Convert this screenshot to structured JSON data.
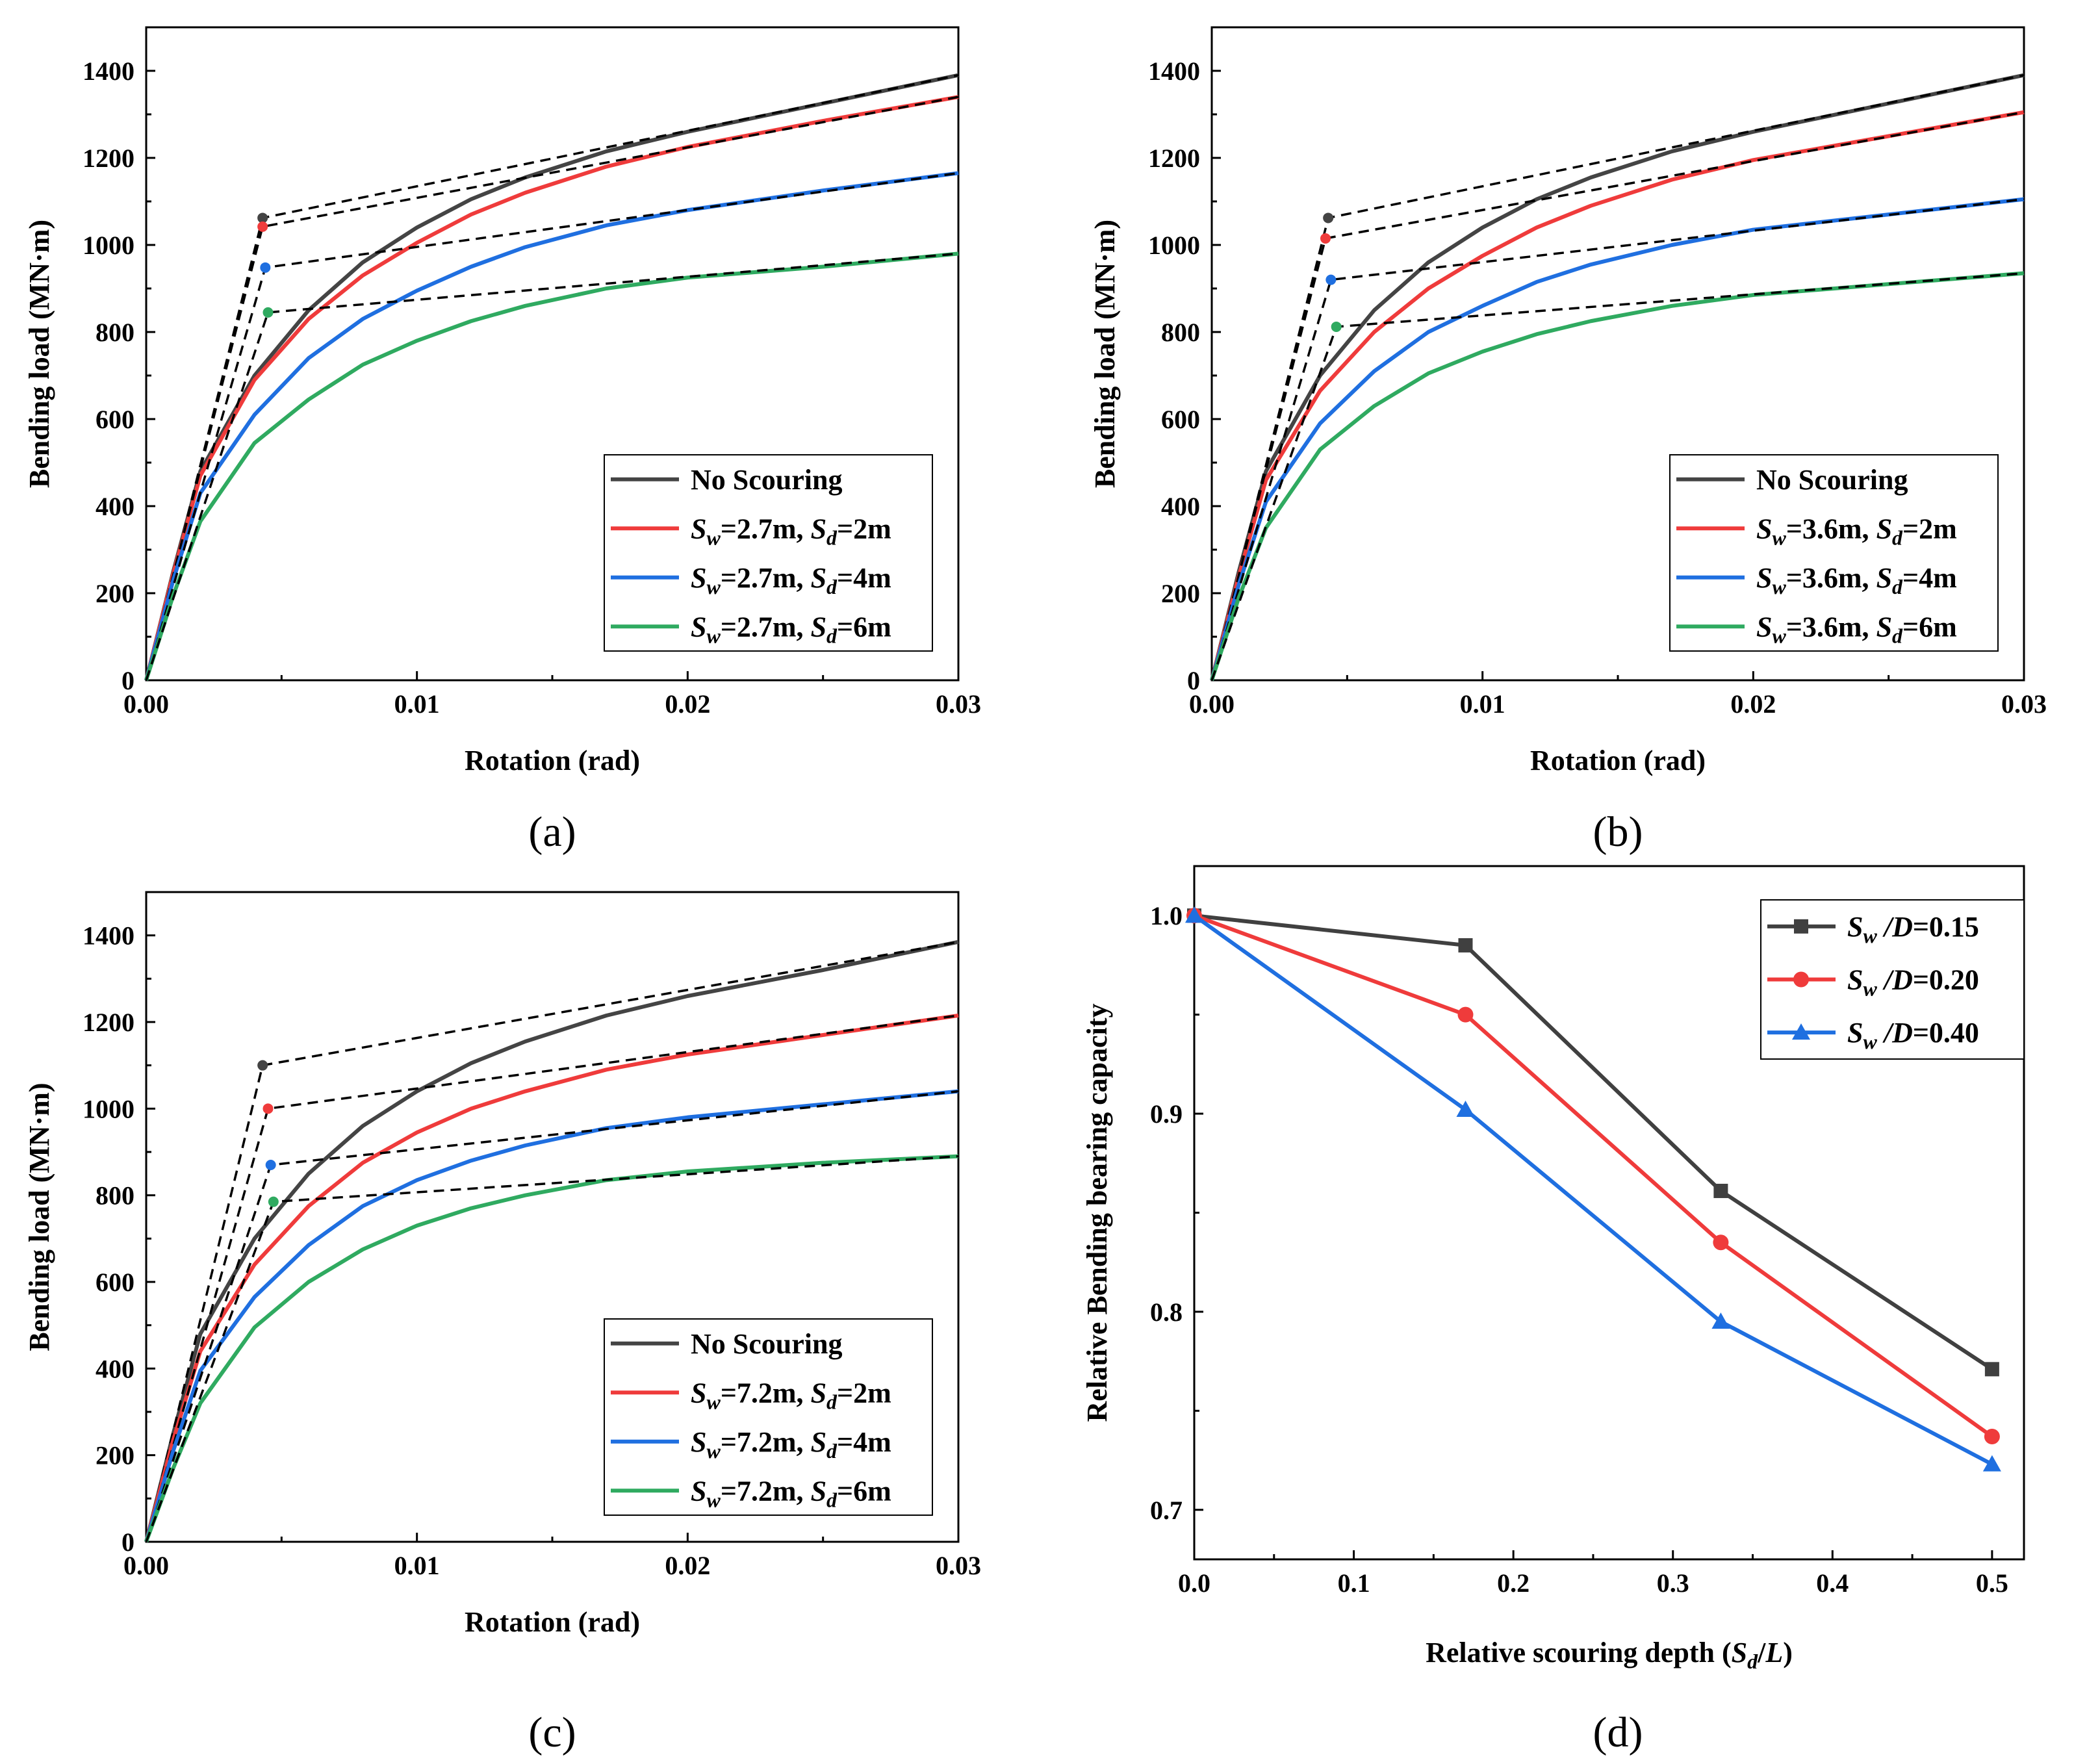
{
  "colors": {
    "no_scouring": "#444444",
    "sd_2m": "#ef3b3b",
    "sd_4m": "#1f6fe0",
    "sd_6m": "#2faa60",
    "bilinear": "#000000",
    "d_015": "#404040",
    "d_020": "#ef3b3b",
    "d_040": "#1f6fe0"
  },
  "chart_data": [
    {
      "type": "line",
      "panel_label": "(a)",
      "xlabel": "Rotation (rad)",
      "ylabel": "Bending load (MN·m)",
      "xlim": [
        0,
        0.03
      ],
      "ylim": [
        0,
        1500
      ],
      "x_tick_labels": [
        "0.00",
        "0.01",
        "0.02",
        "0.03"
      ],
      "y_tick_labels": [
        "0",
        "200",
        "400",
        "600",
        "800",
        "1000",
        "1200",
        "1400"
      ],
      "legend": [
        {
          "parts": [
            {
              "t": "No Scouring"
            }
          ]
        },
        {
          "parts": [
            {
              "t": "S",
              "i": true
            },
            {
              "t": "w",
              "i": true,
              "sub": true
            },
            {
              "t": "=2.7m, "
            },
            {
              "t": "S",
              "i": true
            },
            {
              "t": "d",
              "i": true,
              "sub": true
            },
            {
              "t": "=2m"
            }
          ]
        },
        {
          "parts": [
            {
              "t": "S",
              "i": true
            },
            {
              "t": "w",
              "i": true,
              "sub": true
            },
            {
              "t": "=2.7m, "
            },
            {
              "t": "S",
              "i": true
            },
            {
              "t": "d",
              "i": true,
              "sub": true
            },
            {
              "t": "=4m"
            }
          ]
        },
        {
          "parts": [
            {
              "t": "S",
              "i": true
            },
            {
              "t": "w",
              "i": true,
              "sub": true
            },
            {
              "t": "=2.7m, "
            },
            {
              "t": "S",
              "i": true
            },
            {
              "t": "d",
              "i": true,
              "sub": true
            },
            {
              "t": "=6m"
            }
          ]
        }
      ],
      "series": [
        {
          "name": "No Scouring",
          "x": [
            0,
            0.001,
            0.002,
            0.004,
            0.006,
            0.008,
            0.01,
            0.012,
            0.014,
            0.017,
            0.02,
            0.025,
            0.03
          ],
          "y": [
            0,
            250,
            480,
            700,
            850,
            960,
            1040,
            1105,
            1155,
            1215,
            1260,
            1325,
            1390
          ],
          "yield": [
            0.0043,
            1062
          ]
        },
        {
          "name": "Sw=2.7m, Sd=2m",
          "x": [
            0,
            0.001,
            0.002,
            0.004,
            0.006,
            0.008,
            0.01,
            0.012,
            0.014,
            0.017,
            0.02,
            0.025,
            0.03
          ],
          "y": [
            0,
            245,
            470,
            690,
            830,
            930,
            1005,
            1070,
            1120,
            1180,
            1225,
            1285,
            1340
          ],
          "yield": [
            0.0043,
            1042
          ]
        },
        {
          "name": "Sw=2.7m, Sd=4m",
          "x": [
            0,
            0.001,
            0.002,
            0.004,
            0.006,
            0.008,
            0.01,
            0.012,
            0.014,
            0.017,
            0.02,
            0.025,
            0.03
          ],
          "y": [
            0,
            230,
            430,
            610,
            740,
            830,
            895,
            950,
            995,
            1045,
            1080,
            1125,
            1165
          ],
          "yield": [
            0.0044,
            948
          ]
        },
        {
          "name": "Sw=2.7m, Sd=6m",
          "x": [
            0,
            0.001,
            0.002,
            0.004,
            0.006,
            0.008,
            0.01,
            0.012,
            0.014,
            0.017,
            0.02,
            0.025,
            0.03
          ],
          "y": [
            0,
            195,
            365,
            545,
            645,
            725,
            780,
            825,
            860,
            900,
            925,
            950,
            980
          ],
          "yield": [
            0.0045,
            845
          ]
        }
      ]
    },
    {
      "type": "line",
      "panel_label": "(b)",
      "xlabel": "Rotation (rad)",
      "ylabel": "Bending load (MN·m)",
      "xlim": [
        0,
        0.03
      ],
      "ylim": [
        0,
        1500
      ],
      "x_tick_labels": [
        "0.00",
        "0.01",
        "0.02",
        "0.03"
      ],
      "y_tick_labels": [
        "0",
        "200",
        "400",
        "600",
        "800",
        "1000",
        "1200",
        "1400"
      ],
      "legend": [
        {
          "parts": [
            {
              "t": "No Scouring"
            }
          ]
        },
        {
          "parts": [
            {
              "t": "S",
              "i": true
            },
            {
              "t": "w",
              "i": true,
              "sub": true
            },
            {
              "t": "=3.6m, "
            },
            {
              "t": "S",
              "i": true
            },
            {
              "t": "d",
              "i": true,
              "sub": true
            },
            {
              "t": "=2m"
            }
          ]
        },
        {
          "parts": [
            {
              "t": "S",
              "i": true
            },
            {
              "t": "w",
              "i": true,
              "sub": true
            },
            {
              "t": "=3.6m, "
            },
            {
              "t": "S",
              "i": true
            },
            {
              "t": "d",
              "i": true,
              "sub": true
            },
            {
              "t": "=4m"
            }
          ]
        },
        {
          "parts": [
            {
              "t": "S",
              "i": true
            },
            {
              "t": "w",
              "i": true,
              "sub": true
            },
            {
              "t": "=3.6m, "
            },
            {
              "t": "S",
              "i": true
            },
            {
              "t": "d",
              "i": true,
              "sub": true
            },
            {
              "t": "=6m"
            }
          ]
        }
      ],
      "series": [
        {
          "name": "No Scouring",
          "x": [
            0,
            0.001,
            0.002,
            0.004,
            0.006,
            0.008,
            0.01,
            0.012,
            0.014,
            0.017,
            0.02,
            0.025,
            0.03
          ],
          "y": [
            0,
            250,
            480,
            700,
            850,
            960,
            1040,
            1105,
            1155,
            1215,
            1260,
            1325,
            1390
          ],
          "yield": [
            0.0043,
            1062
          ]
        },
        {
          "name": "Sw=3.6m, Sd=2m",
          "x": [
            0,
            0.001,
            0.002,
            0.004,
            0.006,
            0.008,
            0.01,
            0.012,
            0.014,
            0.017,
            0.02,
            0.025,
            0.03
          ],
          "y": [
            0,
            240,
            460,
            665,
            800,
            900,
            975,
            1040,
            1090,
            1150,
            1195,
            1250,
            1305
          ],
          "yield": [
            0.0042,
            1015
          ]
        },
        {
          "name": "Sw=3.6m, Sd=4m",
          "x": [
            0,
            0.001,
            0.002,
            0.004,
            0.006,
            0.008,
            0.01,
            0.012,
            0.014,
            0.017,
            0.02,
            0.025,
            0.03
          ],
          "y": [
            0,
            220,
            410,
            590,
            710,
            800,
            860,
            915,
            955,
            1000,
            1035,
            1070,
            1105
          ],
          "yield": [
            0.0044,
            920
          ]
        },
        {
          "name": "Sw=3.6m, Sd=6m",
          "x": [
            0,
            0.001,
            0.002,
            0.004,
            0.006,
            0.008,
            0.01,
            0.012,
            0.014,
            0.017,
            0.02,
            0.025,
            0.03
          ],
          "y": [
            0,
            190,
            350,
            530,
            630,
            705,
            755,
            795,
            825,
            860,
            885,
            910,
            935
          ],
          "yield": [
            0.0046,
            812
          ]
        }
      ]
    },
    {
      "type": "line",
      "panel_label": "(c)",
      "xlabel": "Rotation (rad)",
      "ylabel": "Bending load (MN·m)",
      "xlim": [
        0,
        0.03
      ],
      "ylim": [
        0,
        1500
      ],
      "x_tick_labels": [
        "0.00",
        "0.01",
        "0.02",
        "0.03"
      ],
      "y_tick_labels": [
        "0",
        "200",
        "400",
        "600",
        "800",
        "1000",
        "1200",
        "1400"
      ],
      "legend": [
        {
          "parts": [
            {
              "t": "No Scouring"
            }
          ]
        },
        {
          "parts": [
            {
              "t": "S",
              "i": true
            },
            {
              "t": "w",
              "i": true,
              "sub": true
            },
            {
              "t": "=7.2m, "
            },
            {
              "t": "S",
              "i": true
            },
            {
              "t": "d",
              "i": true,
              "sub": true
            },
            {
              "t": "=2m"
            }
          ]
        },
        {
          "parts": [
            {
              "t": "S",
              "i": true
            },
            {
              "t": "w",
              "i": true,
              "sub": true
            },
            {
              "t": "=7.2m, "
            },
            {
              "t": "S",
              "i": true
            },
            {
              "t": "d",
              "i": true,
              "sub": true
            },
            {
              "t": "=4m"
            }
          ]
        },
        {
          "parts": [
            {
              "t": "S",
              "i": true
            },
            {
              "t": "w",
              "i": true,
              "sub": true
            },
            {
              "t": "=7.2m, "
            },
            {
              "t": "S",
              "i": true
            },
            {
              "t": "d",
              "i": true,
              "sub": true
            },
            {
              "t": "=6m"
            }
          ]
        }
      ],
      "series": [
        {
          "name": "No Scouring",
          "x": [
            0,
            0.001,
            0.002,
            0.004,
            0.006,
            0.008,
            0.01,
            0.012,
            0.014,
            0.017,
            0.02,
            0.025,
            0.03
          ],
          "y": [
            0,
            250,
            480,
            700,
            850,
            960,
            1040,
            1105,
            1155,
            1215,
            1260,
            1320,
            1385
          ],
          "yield": [
            0.0043,
            1100
          ]
        },
        {
          "name": "Sw=7.2m, Sd=2m",
          "x": [
            0,
            0.001,
            0.002,
            0.004,
            0.006,
            0.008,
            0.01,
            0.012,
            0.014,
            0.017,
            0.02,
            0.025,
            0.03
          ],
          "y": [
            0,
            235,
            440,
            640,
            775,
            875,
            945,
            1000,
            1040,
            1090,
            1125,
            1170,
            1215
          ],
          "yield": [
            0.0045,
            1000
          ]
        },
        {
          "name": "Sw=7.2m, Sd=4m",
          "x": [
            0,
            0.001,
            0.002,
            0.004,
            0.006,
            0.008,
            0.01,
            0.012,
            0.014,
            0.017,
            0.02,
            0.025,
            0.03
          ],
          "y": [
            0,
            210,
            395,
            565,
            685,
            775,
            835,
            880,
            915,
            955,
            980,
            1010,
            1040
          ],
          "yield": [
            0.0046,
            870
          ]
        },
        {
          "name": "Sw=7.2m, Sd=6m",
          "x": [
            0,
            0.001,
            0.002,
            0.004,
            0.006,
            0.008,
            0.01,
            0.012,
            0.014,
            0.017,
            0.02,
            0.025,
            0.03
          ],
          "y": [
            0,
            170,
            320,
            495,
            600,
            675,
            730,
            770,
            800,
            835,
            855,
            875,
            890
          ],
          "yield": [
            0.0047,
            785
          ]
        }
      ]
    },
    {
      "type": "line",
      "panel_label": "(d)",
      "xlabel": "Relative scouring depth (Sd/L)",
      "ylabel": "Relative Bending bearing capacity",
      "xlim": [
        0,
        0.52
      ],
      "ylim": [
        0.675,
        1.025
      ],
      "x_tick_labels": [
        "0.0",
        "0.1",
        "0.2",
        "0.3",
        "0.4",
        "0.5"
      ],
      "y_tick_labels": [
        "0.7",
        "0.8",
        "0.9",
        "1.0"
      ],
      "legend": [
        {
          "parts": [
            {
              "t": "S",
              "i": true
            },
            {
              "t": "w",
              "i": true,
              "sub": true
            },
            {
              "t": " /",
              "i": true
            },
            {
              "t": "D",
              "i": true
            },
            {
              "t": "=0.15"
            }
          ]
        },
        {
          "parts": [
            {
              "t": "S",
              "i": true
            },
            {
              "t": "w",
              "i": true,
              "sub": true
            },
            {
              "t": " /",
              "i": true
            },
            {
              "t": "D",
              "i": true
            },
            {
              "t": "=0.20"
            }
          ]
        },
        {
          "parts": [
            {
              "t": "S",
              "i": true
            },
            {
              "t": "w",
              "i": true,
              "sub": true
            },
            {
              "t": " /",
              "i": true
            },
            {
              "t": "D",
              "i": true
            },
            {
              "t": "=0.40"
            }
          ]
        }
      ],
      "series": [
        {
          "name": "Sw/D=0.15",
          "marker": "square",
          "x": [
            0,
            0.17,
            0.33,
            0.5
          ],
          "y": [
            1.0,
            0.985,
            0.861,
            0.771
          ]
        },
        {
          "name": "Sw/D=0.20",
          "marker": "circle",
          "x": [
            0,
            0.17,
            0.33,
            0.5
          ],
          "y": [
            1.0,
            0.95,
            0.835,
            0.737
          ]
        },
        {
          "name": "Sw/D=0.40",
          "marker": "triangle",
          "x": [
            0,
            0.17,
            0.33,
            0.5
          ],
          "y": [
            1.0,
            0.902,
            0.795,
            0.723
          ]
        }
      ]
    }
  ]
}
